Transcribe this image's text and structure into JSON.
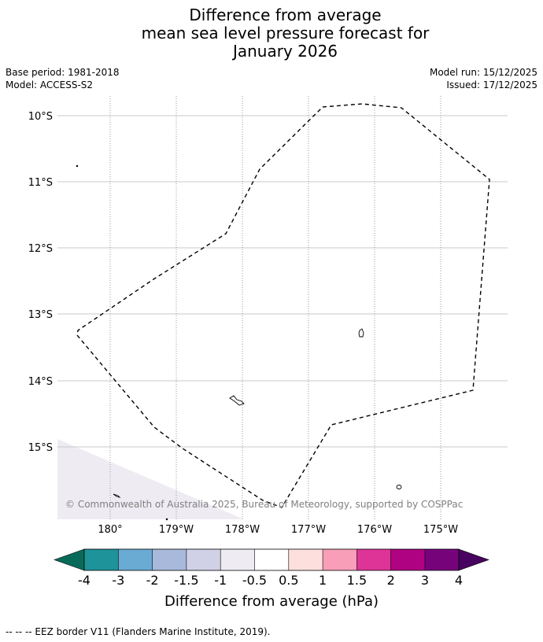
{
  "title": {
    "line1": "Difference from average",
    "line2": "mean sea level pressure forecast for",
    "line3": "January 2026"
  },
  "meta_left": {
    "base_period": "Base period: 1981-2018",
    "model": "Model: ACCESS-S2"
  },
  "meta_right": {
    "model_run": "Model run: 15/12/2025",
    "issued": "Issued: 17/12/2025"
  },
  "map": {
    "lat_labels": [
      "10°S",
      "11°S",
      "12°S",
      "13°S",
      "14°S",
      "15°S"
    ],
    "lon_labels": [
      "180°",
      "179°W",
      "178°W",
      "177°W",
      "176°W",
      "175°W"
    ],
    "copyright": "© Commonwealth of Australia 2025, Bureau of Meteorology, supported by COSPPac",
    "shaded_anomaly_hpa": "-0.5 to -1"
  },
  "colorbar": {
    "tick_labels": [
      "-4",
      "-3",
      "-2",
      "-1.5",
      "-1",
      "-0.5",
      "0.5",
      "1",
      "1.5",
      "2",
      "3",
      "4"
    ],
    "label": "Difference from average (hPa)",
    "colors": [
      "#086b5a",
      "#1e9399",
      "#6aabd4",
      "#a8b9db",
      "#d0d0e6",
      "#efebf3",
      "#ffffff",
      "#fde0de",
      "#f89eb9",
      "#de3498",
      "#ae0283",
      "#77037b",
      "#47035f"
    ]
  },
  "footer": {
    "legend": "--  --  -- EEZ border V11 (Flanders Marine Institute, 2019)."
  }
}
